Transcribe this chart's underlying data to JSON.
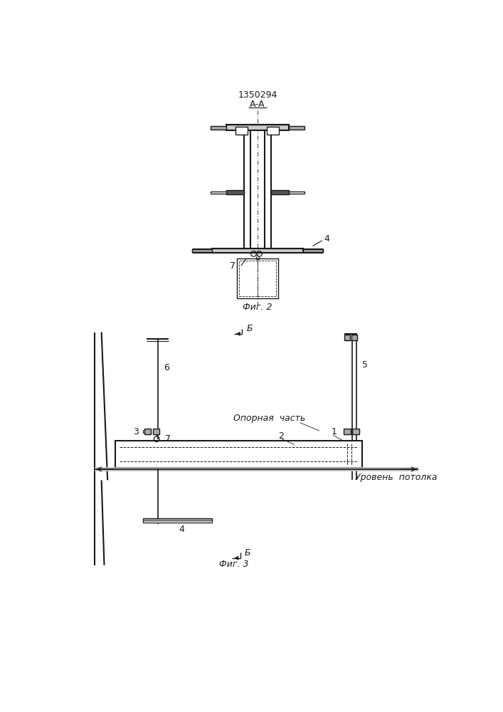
{
  "bg_color": "#ffffff",
  "line_color": "#1a1a1a",
  "title_text": "1350294",
  "fig2_label": "А-А",
  "fig2_caption": "Фиг. 2",
  "fig3_caption": "Фиг. 3",
  "opornaya_text": "Опорная  часть",
  "uroven_text": "Уровень  потолка"
}
